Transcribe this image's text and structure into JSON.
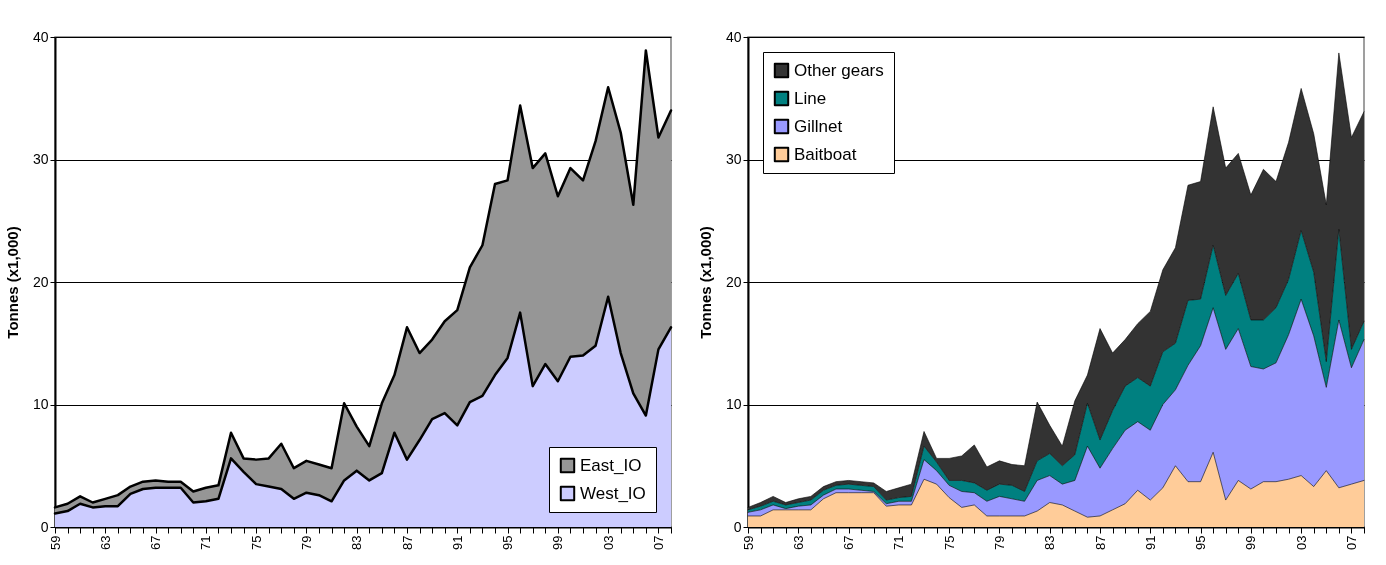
{
  "chart_data": [
    {
      "type": "area",
      "stacked": true,
      "ylabel": "Tonnes (x1,000)",
      "categories": [
        "59",
        null,
        null,
        null,
        "63",
        null,
        null,
        null,
        "67",
        null,
        null,
        null,
        "71",
        null,
        null,
        null,
        "75",
        null,
        null,
        null,
        "79",
        null,
        null,
        null,
        "83",
        null,
        null,
        null,
        "87",
        null,
        null,
        null,
        "91",
        null,
        null,
        null,
        "95",
        null,
        null,
        null,
        "99",
        null,
        null,
        null,
        "03",
        null,
        null,
        null,
        "07",
        null
      ],
      "ylim": [
        0,
        40
      ],
      "yticks": [
        0,
        10,
        20,
        30,
        40
      ],
      "grid": "y",
      "legend": "bottom right",
      "series": [
        {
          "name": "West_IO",
          "color": "#ccccff",
          "values": [
            1.1,
            1.3,
            1.9,
            1.6,
            1.7,
            1.7,
            2.7,
            3.1,
            3.2,
            3.2,
            3.2,
            2.0,
            2.1,
            2.3,
            5.6,
            4.5,
            3.5,
            3.3,
            3.1,
            2.3,
            2.8,
            2.6,
            2.1,
            3.8,
            4.6,
            3.8,
            4.4,
            7.7,
            5.5,
            7.1,
            8.8,
            9.3,
            8.3,
            10.2,
            10.7,
            12.4,
            13.8,
            17.5,
            11.5,
            13.3,
            11.9,
            13.9,
            14.0,
            14.8,
            18.8,
            14.2,
            10.9,
            9.1,
            14.5,
            16.3
          ]
        },
        {
          "name": "East_IO",
          "color": "#969696",
          "values": [
            0.5,
            0.6,
            0.6,
            0.4,
            0.6,
            0.9,
            0.6,
            0.6,
            0.6,
            0.5,
            0.5,
            0.9,
            1.1,
            1.1,
            2.1,
            1.1,
            2.0,
            2.3,
            3.7,
            2.5,
            2.6,
            2.5,
            2.7,
            6.3,
            3.6,
            2.8,
            5.7,
            4.7,
            10.8,
            7.1,
            6.5,
            7.5,
            9.4,
            11.0,
            12.3,
            15.6,
            14.5,
            16.9,
            17.8,
            17.2,
            15.1,
            15.4,
            14.3,
            16.7,
            17.1,
            18.0,
            15.4,
            29.8,
            17.3,
            17.7
          ]
        }
      ]
    },
    {
      "type": "area",
      "stacked": true,
      "ylabel": "Tonnes (x1,000)",
      "categories": [
        "59",
        null,
        null,
        null,
        "63",
        null,
        null,
        null,
        "67",
        null,
        null,
        null,
        "71",
        null,
        null,
        null,
        "75",
        null,
        null,
        null,
        "79",
        null,
        null,
        null,
        "83",
        null,
        null,
        null,
        "87",
        null,
        null,
        null,
        "91",
        null,
        null,
        null,
        "95",
        null,
        null,
        null,
        "99",
        null,
        null,
        null,
        "03",
        null,
        null,
        null,
        "07",
        null
      ],
      "ylim": [
        0,
        40
      ],
      "yticks": [
        0,
        10,
        20,
        30,
        40
      ],
      "grid": "y",
      "legend": "top left",
      "series": [
        {
          "name": "Baitboat",
          "color": "#ffcc99",
          "values": [
            0.9,
            0.9,
            1.4,
            1.4,
            1.4,
            1.4,
            2.3,
            2.8,
            2.8,
            2.8,
            2.8,
            1.7,
            1.8,
            1.8,
            3.9,
            3.5,
            2.4,
            1.6,
            1.8,
            0.9,
            0.9,
            0.9,
            0.9,
            1.3,
            2.0,
            1.8,
            1.3,
            0.8,
            0.9,
            1.4,
            1.9,
            3.0,
            2.2,
            3.2,
            5.0,
            3.7,
            3.7,
            6.1,
            2.2,
            3.8,
            3.1,
            3.7,
            3.7,
            3.9,
            4.2,
            3.3,
            4.6,
            3.2,
            3.5,
            3.8
          ]
        },
        {
          "name": "Gillnet",
          "color": "#9999ff",
          "values": [
            0.3,
            0.5,
            0.4,
            0.1,
            0.3,
            0.4,
            0.3,
            0.3,
            0.3,
            0.2,
            0.1,
            0.2,
            0.3,
            0.3,
            1.6,
            1.1,
            1.0,
            1.3,
            1.0,
            1.2,
            1.6,
            1.4,
            1.2,
            2.5,
            2.2,
            1.7,
            2.5,
            5.8,
            3.9,
            5.0,
            6.0,
            5.6,
            5.7,
            6.8,
            6.2,
            9.5,
            11.1,
            11.8,
            12.3,
            12.4,
            10.0,
            9.2,
            9.7,
            11.8,
            14.4,
            12.3,
            6.8,
            13.7,
            9.5,
            11.5
          ]
        },
        {
          "name": "Line",
          "color": "#008080",
          "values": [
            0.2,
            0.3,
            0.3,
            0.3,
            0.3,
            0.4,
            0.4,
            0.3,
            0.4,
            0.4,
            0.4,
            0.3,
            0.3,
            0.4,
            1.1,
            0.7,
            0.4,
            0.9,
            0.8,
            0.9,
            1.0,
            1.1,
            0.8,
            1.6,
            1.8,
            1.5,
            2.1,
            3.5,
            2.3,
            3.1,
            3.6,
            3.6,
            3.6,
            4.3,
            3.8,
            5.3,
            3.8,
            5.1,
            4.4,
            4.5,
            3.8,
            4.0,
            4.5,
            4.5,
            5.6,
            5.2,
            2.1,
            7.4,
            1.5,
            1.5
          ]
        },
        {
          "name": "Other gears",
          "color": "#333333",
          "values": [
            0.2,
            0.3,
            0.4,
            0.2,
            0.3,
            0.3,
            0.3,
            0.3,
            0.3,
            0.3,
            0.3,
            0.7,
            0.8,
            1.0,
            1.2,
            0.3,
            1.8,
            2.0,
            3.1,
            1.9,
            1.9,
            1.7,
            2.1,
            4.8,
            2.3,
            1.6,
            4.4,
            2.3,
            9.1,
            4.7,
            3.8,
            4.4,
            6.1,
            6.7,
            7.8,
            9.4,
            9.6,
            11.3,
            10.4,
            9.8,
            10.2,
            12.3,
            10.3,
            11.2,
            11.6,
            11.3,
            12.8,
            14.4,
            17.3,
            17.1
          ]
        }
      ]
    }
  ]
}
